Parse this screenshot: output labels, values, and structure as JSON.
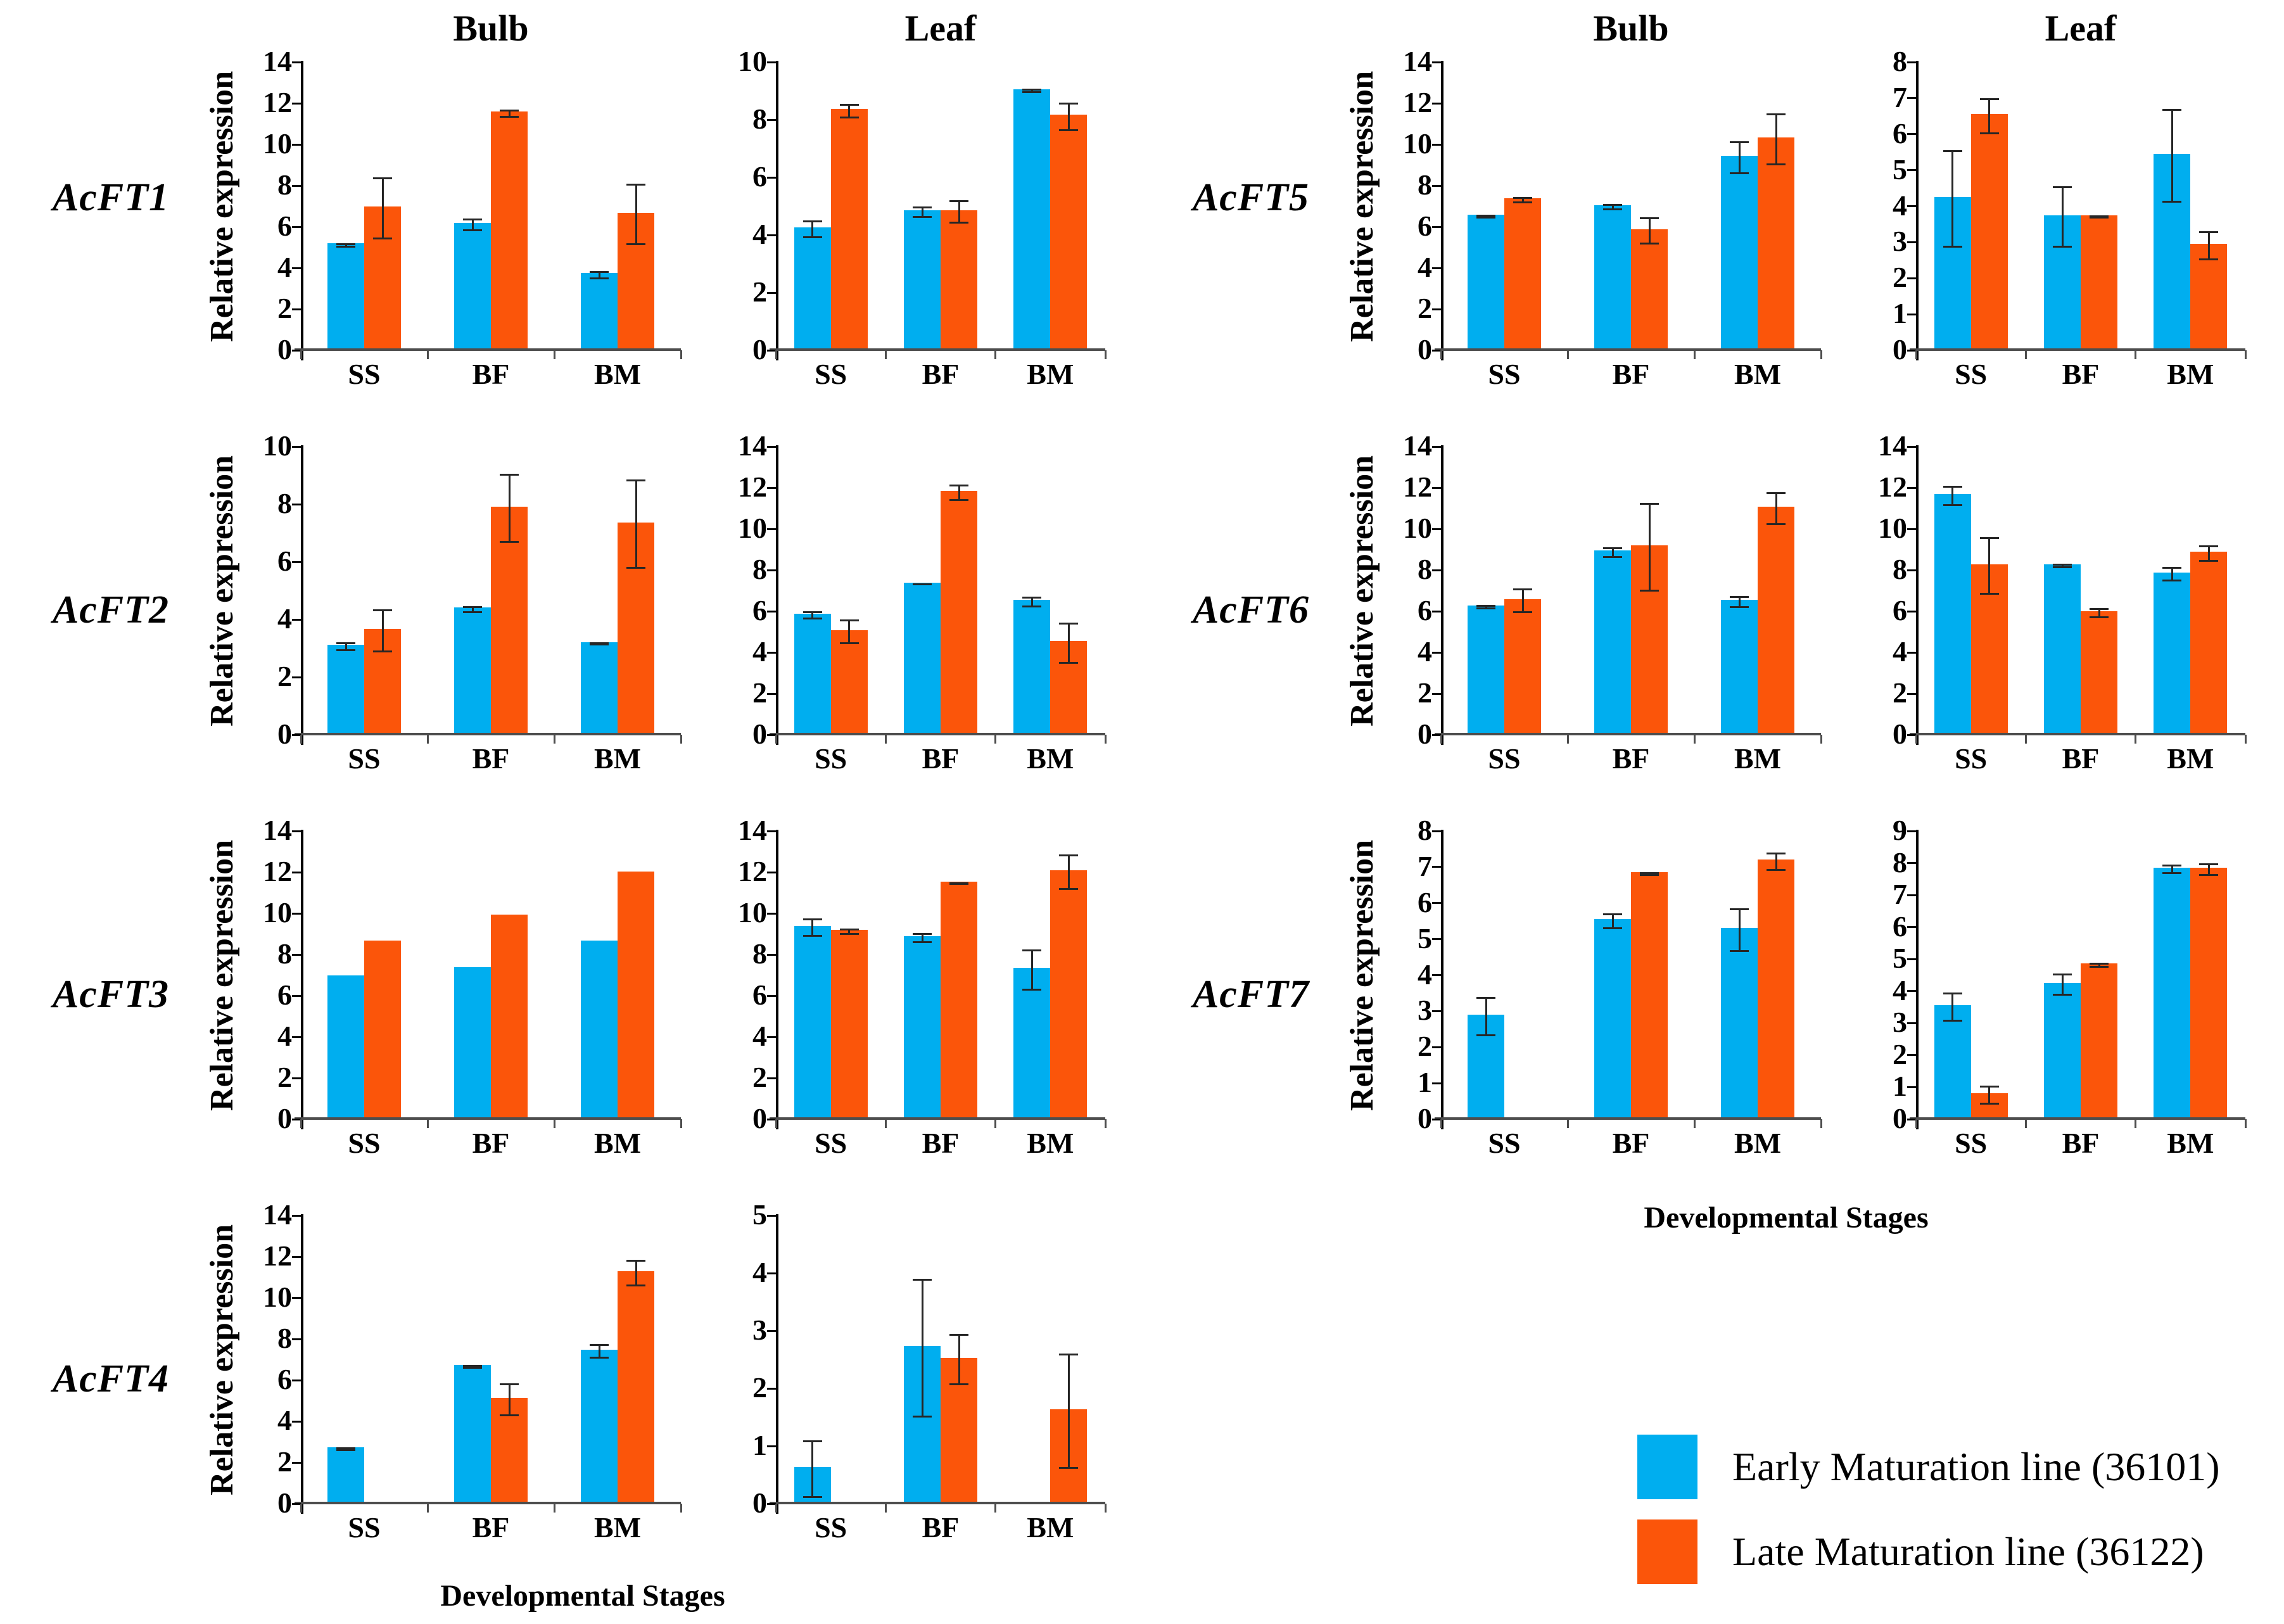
{
  "chart_data": {
    "type": "bar",
    "categories": [
      "SS",
      "BF",
      "BM"
    ],
    "xlabel": "Developmental Stages",
    "ylabel": "Relative expression",
    "tissue_titles": {
      "bulb": "Bulb",
      "leaf": "Leaf"
    },
    "colors": {
      "early": "#00AEEF",
      "late": "#FB550A",
      "error_bar": "#262626"
    },
    "legend": [
      {
        "label": "Early Maturation line (36101)",
        "color": "#00AEEF"
      },
      {
        "label": "Late Maturation line (36122)",
        "color": "#FB550A"
      }
    ],
    "groups": [
      {
        "side": "left",
        "rows": [
          {
            "gene": "AcFT1",
            "bulb": {
              "ymax": 14,
              "ystep": 2,
              "early": {
                "values": [
                  5.1,
                  6.1,
                  3.65
                ],
                "errors": [
                  0.1,
                  0.3,
                  0.2
                ]
              },
              "late": {
                "values": [
                  6.9,
                  11.5,
                  6.6
                ],
                "errors": [
                  1.5,
                  0.2,
                  1.5
                ]
              }
            },
            "leaf": {
              "ymax": 10,
              "ystep": 2,
              "early": {
                "values": [
                  4.2,
                  4.8,
                  9.0
                ],
                "errors": [
                  0.3,
                  0.2,
                  0.07
                ]
              },
              "late": {
                "values": [
                  8.3,
                  4.8,
                  8.1
                ],
                "errors": [
                  0.25,
                  0.4,
                  0.5
                ]
              }
            }
          },
          {
            "gene": "AcFT2",
            "bulb": {
              "ymax": 10,
              "ystep": 2,
              "early": {
                "values": [
                  3.05,
                  4.35,
                  3.15
                ],
                "errors": [
                  0.15,
                  0.12,
                  0.05
                ]
              },
              "late": {
                "values": [
                  3.6,
                  7.85,
                  7.3
                ],
                "errors": [
                  0.75,
                  1.2,
                  1.55
                ]
              }
            },
            "leaf": {
              "ymax": 14,
              "ystep": 2,
              "early": {
                "values": [
                  5.8,
                  7.3,
                  6.45
                ],
                "errors": [
                  0.2,
                  0.05,
                  0.25
                ]
              },
              "late": {
                "values": [
                  5.0,
                  11.75,
                  4.45
                ],
                "errors": [
                  0.6,
                  0.4,
                  1.0
                ]
              }
            }
          },
          {
            "gene": "AcFT3",
            "bulb": {
              "ymax": 14,
              "ystep": 2,
              "early": {
                "values": [
                  6.9,
                  7.3,
                  8.6
                ],
                "errors": [
                  0,
                  0,
                  0
                ]
              },
              "late": {
                "values": [
                  8.6,
                  9.85,
                  11.95
                ],
                "errors": [
                  0,
                  0,
                  0
                ]
              }
            },
            "leaf": {
              "ymax": 14,
              "ystep": 2,
              "early": {
                "values": [
                  9.3,
                  8.8,
                  7.25
                ],
                "errors": [
                  0.45,
                  0.25,
                  1.0
                ]
              },
              "late": {
                "values": [
                  9.1,
                  11.45,
                  12.0
                ],
                "errors": [
                  0.15,
                  0.05,
                  0.85
                ]
              }
            }
          },
          {
            "gene": "AcFT4",
            "bulb": {
              "ymax": 14,
              "ystep": 2,
              "early": {
                "values": [
                  2.65,
                  6.65,
                  7.4
                ],
                "errors": [
                  0.1,
                  0.1,
                  0.35
                ]
              },
              "late": {
                "values": [
                  0,
                  5.05,
                  11.2
                ],
                "errors": [
                  0,
                  0.8,
                  0.65
                ]
              }
            },
            "leaf": {
              "ymax": 5,
              "ystep": 1,
              "early": {
                "values": [
                  0.6,
                  2.7,
                  0
                ],
                "errors": [
                  0.5,
                  1.2,
                  0
                ]
              },
              "late": {
                "values": [
                  0,
                  2.5,
                  1.6
                ],
                "errors": [
                  0,
                  0.45,
                  1.0
                ]
              }
            }
          }
        ]
      },
      {
        "side": "right",
        "rows": [
          {
            "gene": "AcFT5",
            "bulb": {
              "ymax": 14,
              "ystep": 2,
              "early": {
                "values": [
                  6.5,
                  6.95,
                  9.35
                ],
                "errors": [
                  0.1,
                  0.15,
                  0.8
                ]
              },
              "late": {
                "values": [
                  7.3,
                  5.8,
                  10.25
                ],
                "errors": [
                  0.15,
                  0.65,
                  1.25
                ]
              }
            },
            "leaf": {
              "ymax": 8,
              "ystep": 1,
              "early": {
                "values": [
                  4.2,
                  3.7,
                  5.4
                ],
                "errors": [
                  1.35,
                  0.85,
                  1.3
                ]
              },
              "late": {
                "values": [
                  6.5,
                  3.7,
                  2.9
                ],
                "errors": [
                  0.5,
                  0.05,
                  0.4
                ]
              }
            }
          },
          {
            "gene": "AcFT6",
            "bulb": {
              "ymax": 14,
              "ystep": 2,
              "early": {
                "values": [
                  6.2,
                  8.85,
                  6.45
                ],
                "errors": [
                  0.1,
                  0.25,
                  0.3
                ]
              },
              "late": {
                "values": [
                  6.5,
                  9.1,
                  11.0
                ],
                "errors": [
                  0.6,
                  2.15,
                  0.8
                ]
              }
            },
            "leaf": {
              "ymax": 14,
              "ystep": 2,
              "early": {
                "values": [
                  11.6,
                  8.2,
                  7.8
                ],
                "errors": [
                  0.5,
                  0.12,
                  0.35
                ]
              },
              "late": {
                "values": [
                  8.2,
                  5.9,
                  8.8
                ],
                "errors": [
                  1.4,
                  0.25,
                  0.4
                ]
              }
            }
          },
          {
            "gene": "AcFT7",
            "bulb": {
              "ymax": 8,
              "ystep": 1,
              "early": {
                "values": [
                  2.85,
                  5.5,
                  5.25
                ],
                "errors": [
                  0.55,
                  0.22,
                  0.6
                ]
              },
              "late": {
                "values": [
                  0,
                  6.8,
                  7.15
                ],
                "errors": [
                  0,
                  0.05,
                  0.25
                ]
              }
            },
            "leaf": {
              "ymax": 9,
              "ystep": 1,
              "early": {
                "values": [
                  3.5,
                  4.2,
                  7.8
                ],
                "errors": [
                  0.45,
                  0.35,
                  0.15
                ]
              },
              "late": {
                "values": [
                  0.75,
                  4.8,
                  7.8
                ],
                "errors": [
                  0.3,
                  0.08,
                  0.2
                ]
              }
            }
          }
        ]
      }
    ],
    "layout": {
      "grid": true,
      "legend_position": "bottom-right",
      "error_bars": true
    }
  }
}
